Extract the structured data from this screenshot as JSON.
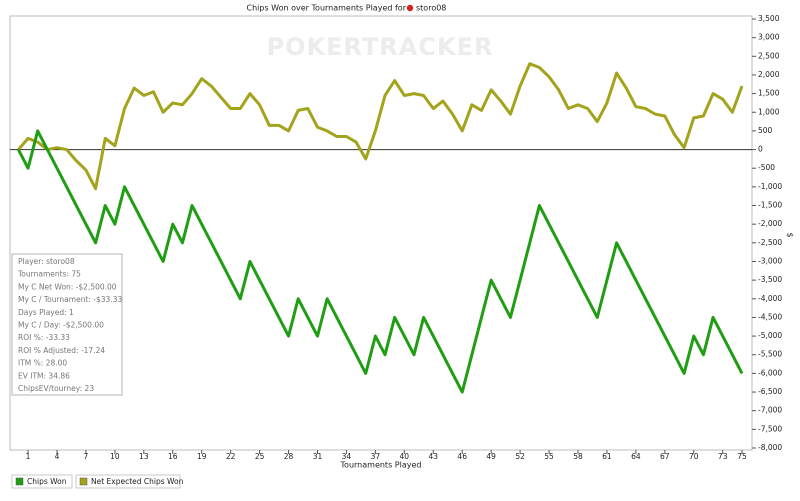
{
  "chart_data": {
    "type": "line",
    "title": "Chips Won over Tournaments Played for",
    "player": "storo08",
    "watermark": "POKERTRACKER",
    "x_label": "Tournaments Played",
    "y_label": "$",
    "x": [
      0,
      1,
      2,
      3,
      4,
      5,
      6,
      7,
      8,
      9,
      10,
      11,
      12,
      13,
      14,
      15,
      16,
      17,
      18,
      19,
      20,
      21,
      22,
      23,
      24,
      25,
      26,
      27,
      28,
      29,
      30,
      31,
      32,
      33,
      34,
      35,
      36,
      37,
      38,
      39,
      40,
      41,
      42,
      43,
      44,
      45,
      46,
      47,
      48,
      49,
      50,
      51,
      52,
      53,
      54,
      55,
      56,
      57,
      58,
      59,
      60,
      61,
      62,
      63,
      64,
      65,
      66,
      67,
      68,
      69,
      70,
      71,
      72,
      73,
      74,
      75
    ],
    "series": [
      {
        "name": "Chips Won",
        "color": "#1f9e14",
        "values": [
          0,
          -500,
          500,
          0,
          -500,
          -1000,
          -1500,
          -2000,
          -2500,
          -1500,
          -2000,
          -1000,
          -1500,
          -2000,
          -2500,
          -3000,
          -2000,
          -2500,
          -1500,
          -2000,
          -2500,
          -3000,
          -3500,
          -4000,
          -3000,
          -3500,
          -4000,
          -4500,
          -5000,
          -4000,
          -4500,
          -5000,
          -4000,
          -4500,
          -5000,
          -5500,
          -6000,
          -5000,
          -5500,
          -4500,
          -5000,
          -5500,
          -4500,
          -5000,
          -5500,
          -6000,
          -6500,
          -5500,
          -4500,
          -3500,
          -4000,
          -4500,
          -3500,
          -2500,
          -1500,
          -2000,
          -2500,
          -3000,
          -3500,
          -4000,
          -4500,
          -3500,
          -2500,
          -3000,
          -3500,
          -4000,
          -4500,
          -5000,
          -5500,
          -6000,
          -5000,
          -5500,
          -4500,
          -5000,
          -5500,
          -6000
        ]
      },
      {
        "name": "Net Expected Chips Won",
        "color": "#a3a31c",
        "values": [
          0,
          300,
          200,
          0,
          50,
          0,
          -300,
          -550,
          -1050,
          300,
          100,
          1100,
          1650,
          1450,
          1550,
          1000,
          1250,
          1200,
          1500,
          1900,
          1700,
          1400,
          1100,
          1100,
          1500,
          1200,
          650,
          650,
          500,
          1050,
          1100,
          600,
          500,
          350,
          350,
          200,
          -250,
          500,
          1450,
          1850,
          1450,
          1500,
          1450,
          1100,
          1300,
          950,
          500,
          1200,
          1050,
          1600,
          1300,
          950,
          1700,
          2300,
          2200,
          1950,
          1600,
          1100,
          1200,
          1100,
          750,
          1250,
          2050,
          1650,
          1150,
          1100,
          950,
          900,
          400,
          50,
          850,
          900,
          1500,
          1350,
          1000,
          1700
        ]
      }
    ],
    "xlim": [
      0,
      75
    ],
    "xticks": [
      1,
      4,
      7,
      10,
      13,
      16,
      19,
      22,
      25,
      28,
      31,
      34,
      37,
      40,
      43,
      46,
      49,
      52,
      55,
      58,
      61,
      64,
      67,
      70,
      73,
      75
    ],
    "ylim": [
      -8000,
      3500
    ],
    "yticks": [
      {
        "value": -8000,
        "label": "-8,000"
      },
      {
        "value": -7500,
        "label": "-7,500"
      },
      {
        "value": -7000,
        "label": "-7,000"
      },
      {
        "value": -6500,
        "label": "-6,500"
      },
      {
        "value": -6000,
        "label": "-6,000"
      },
      {
        "value": -5500,
        "label": "-5,500"
      },
      {
        "value": -5000,
        "label": "-5,000"
      },
      {
        "value": -4500,
        "label": "-4,500"
      },
      {
        "value": -4000,
        "label": "-4,000"
      },
      {
        "value": -3500,
        "label": "-3,500"
      },
      {
        "value": -3000,
        "label": "-3,000"
      },
      {
        "value": -2500,
        "label": "-2,500"
      },
      {
        "value": -2000,
        "label": "-2,000"
      },
      {
        "value": -1500,
        "label": "-1,500"
      },
      {
        "value": -1000,
        "label": "-1,000"
      },
      -500,
      0,
      500,
      {
        "value": 1000,
        "label": "1,000"
      },
      {
        "value": 1500,
        "label": "1,500"
      },
      {
        "value": 2000,
        "label": "2,000"
      },
      {
        "value": 2500,
        "label": "2,500"
      },
      {
        "value": 3000,
        "label": "3,000"
      },
      {
        "value": 3500,
        "label": "3,500"
      }
    ],
    "y_axis_side": "right",
    "grid": false,
    "info_box": [
      "Player: storo08",
      "Tournaments: 75",
      "My C Net Won: -$2,500.00",
      "My C / Tournament: -$33.33",
      "Days Played: 1",
      "My C / Day: -$2,500.00",
      "ROI %: -33.33",
      "ROI % Adjusted: -17.24",
      "ITM %: 28.00",
      "EV ITM: 34.86",
      "ChipsEV/tourney: 23"
    ]
  }
}
